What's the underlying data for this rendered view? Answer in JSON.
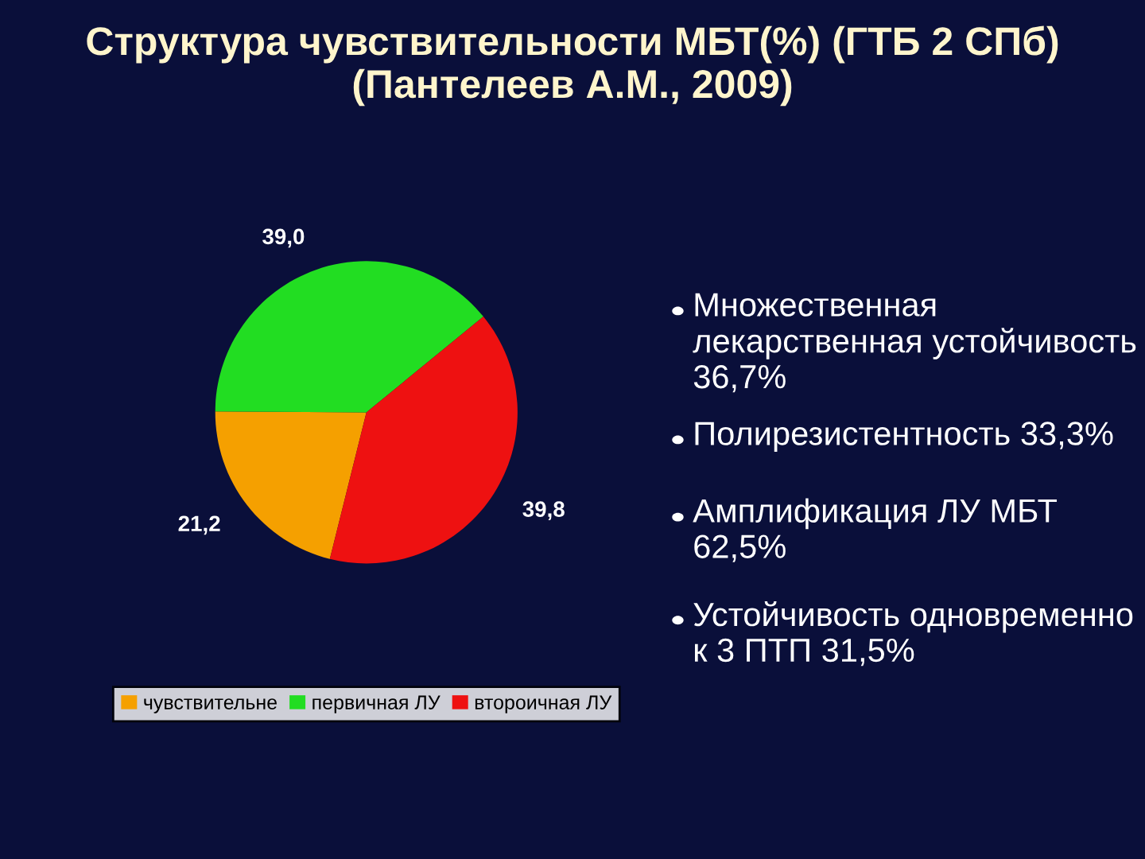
{
  "chart_data": {
    "type": "pie",
    "title": "Структура чувствительности МБТ(%) (ГТБ 2 СПб) (Пантелеев А.М., 2009)",
    "categories": [
      "чувствительне",
      "первичная ЛУ",
      "второичная ЛУ"
    ],
    "values": [
      21.2,
      39.0,
      39.8
    ],
    "value_labels": [
      "21,2",
      "39,0",
      "39,8"
    ],
    "colors": [
      "#f5a000",
      "#22dd22",
      "#ee1111"
    ],
    "legend": "bottom",
    "annotations": [
      "Множественная лекарственная устойчивость 36,7%",
      "Полирезистентность 33,3%",
      "Амплификация ЛУ МБТ 62,5%",
      "Устойчивость одновременно к 3 ПТП 31,5%"
    ]
  }
}
